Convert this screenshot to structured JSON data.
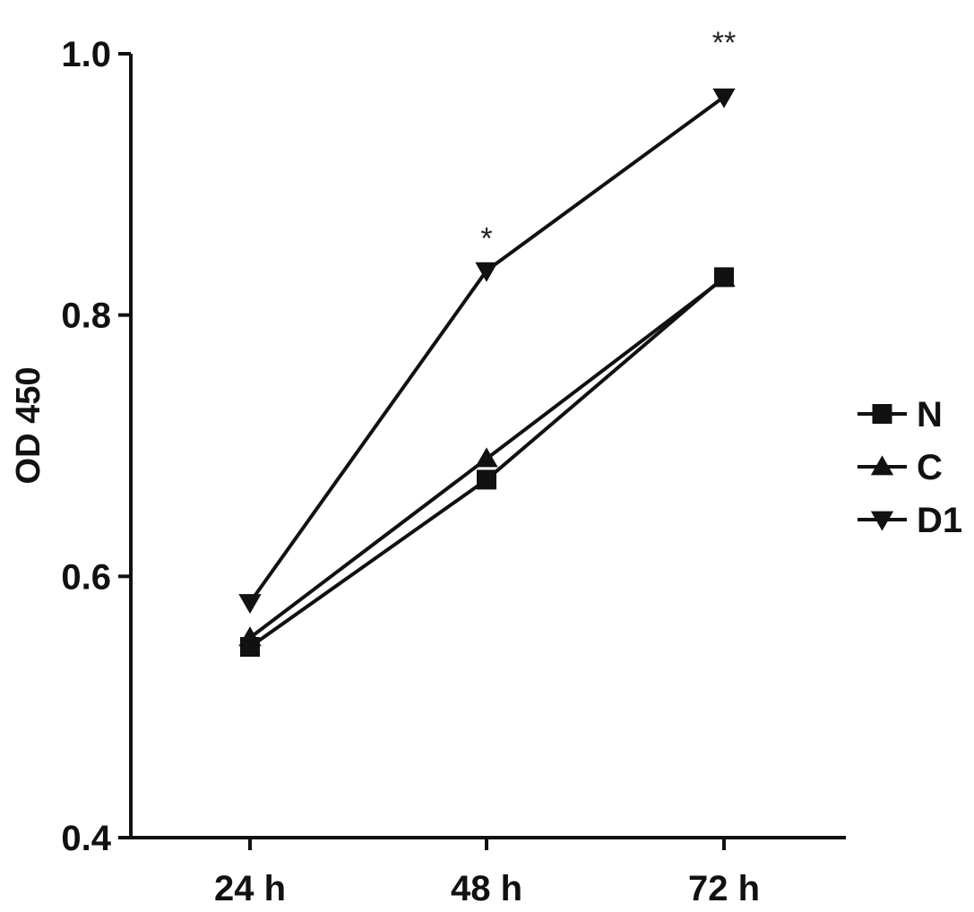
{
  "chart_data": {
    "type": "line",
    "categories": [
      "24 h",
      "48 h",
      "72 h"
    ],
    "ylabel": "OD 450",
    "xlabel": "",
    "ylim": [
      0.4,
      1.0
    ],
    "yticks": [
      "0.4",
      "0.6",
      "0.8",
      "1.0"
    ],
    "grid": false,
    "legend_position": "right",
    "series": [
      {
        "name": "N",
        "marker": "square",
        "values": [
          0.546,
          0.674,
          0.829
        ]
      },
      {
        "name": "C",
        "marker": "triangle-up",
        "values": [
          0.553,
          0.69,
          0.828
        ]
      },
      {
        "name": "D1",
        "marker": "triangle-down",
        "values": [
          0.58,
          0.834,
          0.967
        ]
      }
    ],
    "annotations": [
      {
        "text": "*",
        "category": "48 h",
        "y": 0.87
      },
      {
        "text": "**",
        "category": "72 h",
        "y": 1.02
      }
    ],
    "colors": {
      "line": "#111111",
      "background": "#ffffff"
    }
  }
}
